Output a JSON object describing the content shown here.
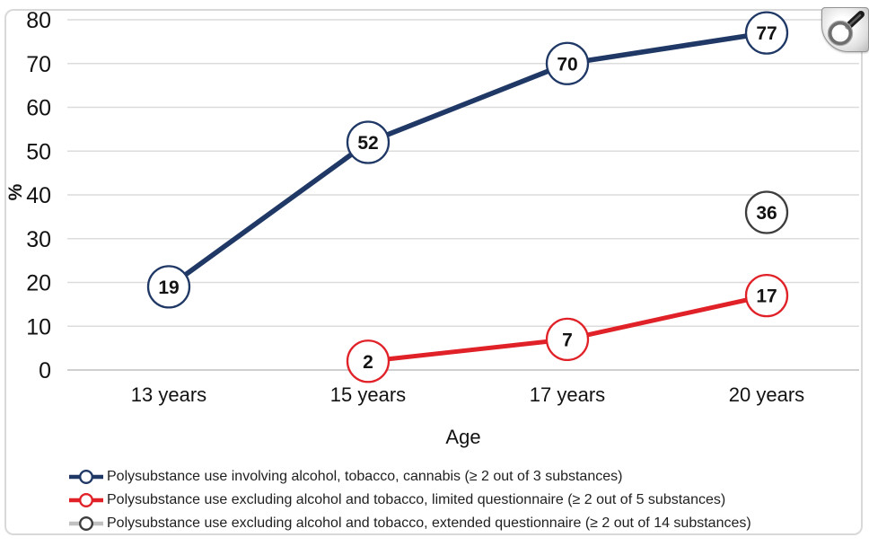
{
  "icons": {
    "zoom_button": "magnifier-icon",
    "data_point_marker": "open-circle-with-value"
  },
  "colors": {
    "series_blue": "#1f3865",
    "series_red": "#e02127",
    "series_gray_line": "#c0c0c0",
    "series_gray_marker": "#3d3d3d",
    "gridline": "#dcdcdc",
    "axis_zero_line": "#c8c8c8",
    "text": "#121212",
    "frame_border": "#d9d9d9",
    "background": "#ffffff"
  },
  "chart_data": {
    "type": "line",
    "title": "",
    "categories": [
      "13 years",
      "15 years",
      "17 years",
      "20 years"
    ],
    "series": [
      {
        "name": "Polysubstance use involving alcohol, tobacco, cannabis (≥ 2 out of 3 substances)",
        "values": [
          19,
          52,
          70,
          77
        ],
        "line_color": "#1f3865",
        "marker_stroke": "#1f3865",
        "has_line": true
      },
      {
        "name": "Polysubstance use excluding alcohol and tobacco, limited questionnaire (≥ 2 out of 5 substances)",
        "values": [
          null,
          2,
          7,
          17
        ],
        "line_color": "#e02127",
        "marker_stroke": "#e02127",
        "has_line": true
      },
      {
        "name": "Polysubstance use excluding alcohol and tobacco, extended questionnaire (≥ 2 out of 14 substances)",
        "values": [
          null,
          null,
          null,
          36
        ],
        "line_color": "#c0c0c0",
        "marker_stroke": "#3d3d3d",
        "has_line": false
      }
    ],
    "xlabel": "Age",
    "ylabel": "%",
    "ylim": [
      0,
      80
    ],
    "y_ticks": [
      0,
      10,
      20,
      30,
      40,
      50,
      60,
      70,
      80
    ],
    "grid": true,
    "legend_position": "bottom-left",
    "marker_style": "open-circle-with-value-label"
  }
}
